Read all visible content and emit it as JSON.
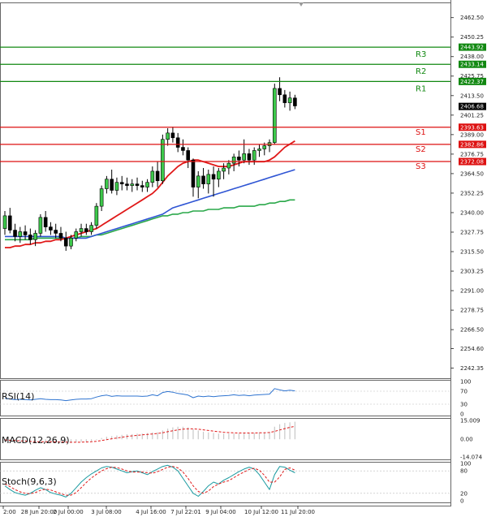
{
  "chart_data": {
    "type": "candlestick",
    "price_axis": {
      "ylim": [
        2236.0,
        2472.0
      ],
      "ticks": [
        "2462.50",
        "2450.25",
        "2438.00",
        "2425.75",
        "2413.50",
        "2401.25",
        "2389.00",
        "2376.75",
        "2364.50",
        "2352.25",
        "2340.00",
        "2327.75",
        "2315.50",
        "2303.25",
        "2291.00",
        "2278.75",
        "2266.50",
        "2254.60",
        "2242.35"
      ]
    },
    "x_labels": [
      "2:00",
      "28 Jun 20:00",
      "2 Jul 00:00",
      "3 Jul 08:00",
      "4 Jul 16:00",
      "7 Jul 22:01",
      "9 Jul 04:00",
      "10 Jul 12:00",
      "11 Jul 20:00"
    ],
    "levels": [
      {
        "name": "R3",
        "value": 2443.92,
        "label": "2443.92",
        "color": "#118811"
      },
      {
        "name": "R2",
        "value": 2433.14,
        "label": "2433.14",
        "color": "#118811"
      },
      {
        "name": "R1",
        "value": 2422.37,
        "label": "2422.37",
        "color": "#118811"
      },
      {
        "name": "S1",
        "value": 2393.63,
        "label": "2393.63",
        "color": "#dd1111"
      },
      {
        "name": "S2",
        "value": 2382.86,
        "label": "2382.86",
        "color": "#dd1111"
      },
      {
        "name": "S3",
        "value": 2372.08,
        "label": "2372.08",
        "color": "#dd1111"
      }
    ],
    "current_price": {
      "value": 2406.68,
      "label": "2406.68"
    },
    "candles": [
      [
        2330,
        2341,
        2326,
        2338
      ],
      [
        2338,
        2343,
        2327,
        2329
      ],
      [
        2329,
        2333,
        2322,
        2325
      ],
      [
        2325,
        2331,
        2321,
        2328
      ],
      [
        2328,
        2332,
        2323,
        2326
      ],
      [
        2326,
        2330,
        2320,
        2323
      ],
      [
        2323,
        2329,
        2319,
        2327
      ],
      [
        2327,
        2339,
        2325,
        2337
      ],
      [
        2337,
        2341,
        2328,
        2331
      ],
      [
        2331,
        2334,
        2326,
        2329
      ],
      [
        2329,
        2333,
        2324,
        2327
      ],
      [
        2327,
        2331,
        2322,
        2324
      ],
      [
        2324,
        2328,
        2316,
        2319
      ],
      [
        2319,
        2326,
        2317,
        2324
      ],
      [
        2324,
        2330,
        2322,
        2328
      ],
      [
        2328,
        2333,
        2325,
        2330
      ],
      [
        2330,
        2333,
        2326,
        2328
      ],
      [
        2328,
        2334,
        2326,
        2332
      ],
      [
        2332,
        2346,
        2330,
        2344
      ],
      [
        2344,
        2357,
        2341,
        2355
      ],
      [
        2355,
        2363,
        2352,
        2361
      ],
      [
        2361,
        2367,
        2352,
        2354
      ],
      [
        2354,
        2362,
        2351,
        2359
      ],
      [
        2359,
        2363,
        2354,
        2358
      ],
      [
        2358,
        2362,
        2354,
        2357
      ],
      [
        2357,
        2361,
        2353,
        2358
      ],
      [
        2358,
        2362,
        2354,
        2357
      ],
      [
        2357,
        2360,
        2353,
        2356
      ],
      [
        2356,
        2361,
        2353,
        2359
      ],
      [
        2359,
        2369,
        2356,
        2366
      ],
      [
        2366,
        2372,
        2356,
        2360
      ],
      [
        2360,
        2389,
        2358,
        2386
      ],
      [
        2386,
        2393,
        2382,
        2390
      ],
      [
        2390,
        2394,
        2384,
        2387
      ],
      [
        2387,
        2390,
        2378,
        2381
      ],
      [
        2381,
        2386,
        2376,
        2379
      ],
      [
        2379,
        2381,
        2368,
        2373
      ],
      [
        2373,
        2374,
        2350,
        2356
      ],
      [
        2356,
        2366,
        2349,
        2363
      ],
      [
        2363,
        2368,
        2355,
        2358
      ],
      [
        2358,
        2367,
        2352,
        2364
      ],
      [
        2364,
        2369,
        2350,
        2361
      ],
      [
        2361,
        2368,
        2356,
        2366
      ],
      [
        2366,
        2371,
        2361,
        2368
      ],
      [
        2368,
        2373,
        2364,
        2371
      ],
      [
        2371,
        2377,
        2366,
        2375
      ],
      [
        2375,
        2379,
        2369,
        2373
      ],
      [
        2373,
        2386,
        2371,
        2377
      ],
      [
        2377,
        2380,
        2370,
        2373
      ],
      [
        2373,
        2381,
        2370,
        2379
      ],
      [
        2379,
        2383,
        2375,
        2380
      ],
      [
        2380,
        2384,
        2376,
        2382
      ],
      [
        2382,
        2386,
        2378,
        2384
      ],
      [
        2384,
        2421,
        2383,
        2418
      ],
      [
        2418,
        2425,
        2410,
        2414
      ],
      [
        2414,
        2417,
        2406,
        2409
      ],
      [
        2409,
        2416,
        2404,
        2412
      ],
      [
        2412,
        2414,
        2405,
        2407
      ]
    ],
    "ma_red": [
      2318,
      2318,
      2319,
      2319,
      2320,
      2320,
      2321,
      2321,
      2322,
      2322,
      2323,
      2323,
      2324,
      2325,
      2326,
      2327,
      2328,
      2329,
      2330,
      2332,
      2334,
      2336,
      2338,
      2340,
      2342,
      2344,
      2346,
      2348,
      2350,
      2352,
      2355,
      2359,
      2363,
      2366,
      2369,
      2371,
      2372,
      2373,
      2373,
      2372,
      2371,
      2370,
      2369,
      2369,
      2369,
      2370,
      2371,
      2372,
      2372,
      2372,
      2372,
      2372,
      2373,
      2375,
      2378,
      2381,
      2383,
      2385
    ],
    "ma_blue": [
      2325,
      2325,
      2325,
      2325,
      2325,
      2325,
      2325,
      2325,
      2325,
      2325,
      2325,
      2325,
      2324,
      2324,
      2324,
      2324,
      2324,
      2325,
      2326,
      2327,
      2328,
      2329,
      2330,
      2331,
      2332,
      2333,
      2334,
      2335,
      2336,
      2337,
      2338,
      2339,
      2341,
      2343,
      2344,
      2345,
      2346,
      2347,
      2348,
      2349,
      2350,
      2351,
      2352,
      2353,
      2354,
      2355,
      2356,
      2357,
      2358,
      2359,
      2360,
      2361,
      2362,
      2363,
      2364,
      2365,
      2366,
      2367
    ],
    "ma_green": [
      2323,
      2323,
      2323,
      2323,
      2323,
      2323,
      2324,
      2324,
      2324,
      2324,
      2324,
      2324,
      2324,
      2324,
      2324,
      2325,
      2325,
      2325,
      2326,
      2326,
      2327,
      2328,
      2329,
      2330,
      2331,
      2332,
      2333,
      2334,
      2335,
      2336,
      2337,
      2338,
      2338,
      2339,
      2339,
      2340,
      2340,
      2341,
      2341,
      2341,
      2342,
      2342,
      2342,
      2343,
      2343,
      2343,
      2344,
      2344,
      2344,
      2344,
      2345,
      2345,
      2346,
      2346,
      2347,
      2347,
      2348,
      2348
    ],
    "rsi": {
      "label": "RSI(14)",
      "ticks": [
        "100",
        "70",
        "30",
        "0"
      ],
      "ylim": [
        0,
        100
      ],
      "values": [
        48,
        46,
        44,
        45,
        44,
        43,
        45,
        47,
        45,
        44,
        44,
        43,
        41,
        43,
        45,
        46,
        46,
        47,
        52,
        56,
        58,
        54,
        56,
        55,
        55,
        55,
        55,
        54,
        55,
        59,
        56,
        66,
        69,
        67,
        63,
        61,
        58,
        50,
        55,
        53,
        55,
        53,
        55,
        56,
        57,
        59,
        57,
        58,
        56,
        58,
        59,
        60,
        61,
        78,
        74,
        71,
        73,
        71
      ]
    },
    "macd": {
      "label": "MACD(12,26,9)",
      "ticks": [
        "15.009",
        "0.00",
        "-14.074"
      ],
      "ylim": [
        -14.074,
        15.009
      ],
      "hist": [
        -1,
        -1.5,
        -2,
        -2,
        -2,
        -2.5,
        -2.5,
        -2,
        -2,
        -2,
        -2,
        -2.5,
        -3,
        -3,
        -2.5,
        -2,
        -2,
        -1.5,
        -0.5,
        1,
        2,
        2.5,
        3,
        3.5,
        4,
        4,
        4.5,
        4.5,
        5,
        5.5,
        5.5,
        7,
        8.5,
        9.5,
        10,
        10,
        9.5,
        8,
        7,
        6,
        5.5,
        5,
        4.5,
        4.5,
        4.5,
        4.5,
        4.5,
        5,
        5,
        5,
        5.5,
        5.5,
        6,
        10,
        12,
        13,
        13.5,
        14
      ],
      "signal": [
        -0.5,
        -0.8,
        -1,
        -1.3,
        -1.5,
        -1.7,
        -1.9,
        -2,
        -2,
        -2,
        -2.1,
        -2.2,
        -2.3,
        -2.4,
        -2.4,
        -2.3,
        -2.2,
        -2,
        -1.6,
        -1,
        -0.3,
        0.4,
        1,
        1.6,
        2.2,
        2.7,
        3.1,
        3.5,
        3.9,
        4.2,
        4.6,
        5.2,
        6,
        6.8,
        7.5,
        8,
        8.3,
        8.3,
        8,
        7.5,
        7,
        6.5,
        6,
        5.6,
        5.3,
        5.1,
        5,
        5,
        5,
        5,
        5.1,
        5.2,
        5.4,
        6.3,
        7.4,
        8.5,
        9.5,
        10.3
      ]
    },
    "stoch": {
      "label": "Stoch(9,6,3)",
      "ticks": [
        "100",
        "80",
        "20",
        "0"
      ],
      "ylim": [
        0,
        100
      ],
      "k": [
        40,
        30,
        22,
        18,
        15,
        20,
        28,
        35,
        30,
        22,
        18,
        15,
        10,
        20,
        35,
        50,
        62,
        72,
        80,
        88,
        92,
        90,
        85,
        80,
        75,
        78,
        80,
        75,
        70,
        78,
        85,
        92,
        95,
        90,
        80,
        60,
        40,
        20,
        12,
        25,
        40,
        50,
        45,
        55,
        62,
        70,
        78,
        85,
        90,
        85,
        70,
        50,
        30,
        70,
        92,
        90,
        82,
        75
      ],
      "d": [
        45,
        38,
        30,
        24,
        20,
        19,
        22,
        28,
        31,
        29,
        24,
        19,
        15,
        15,
        22,
        35,
        49,
        61,
        71,
        80,
        86,
        90,
        89,
        85,
        80,
        77,
        77,
        77,
        75,
        74,
        78,
        84,
        90,
        92,
        88,
        77,
        60,
        40,
        25,
        20,
        26,
        38,
        45,
        50,
        54,
        62,
        70,
        77,
        84,
        87,
        82,
        68,
        50,
        50,
        64,
        84,
        88,
        82
      ]
    }
  }
}
